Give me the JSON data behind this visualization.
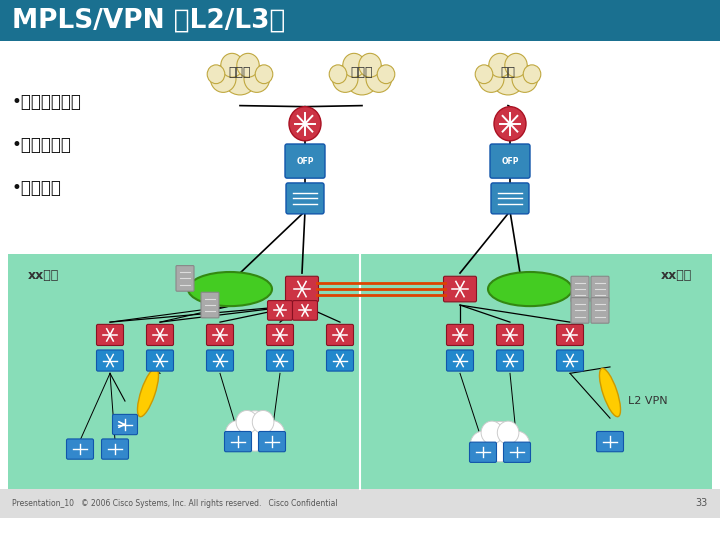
{
  "title": "MPLS/VPN （L2/L3）",
  "title_color": "#ffffff",
  "header_bg": "#1a7090",
  "body_bg": "#ffffff",
  "green_bg": "#88ddb8",
  "bullet_points": [
    "•学生宿舍连接",
    "•一卡通备份",
    "•数据中心"
  ],
  "cloud_labels": [
    "教科网",
    "校校通",
    "电信"
  ],
  "left_label": "xx校区",
  "right_label": "xx校区",
  "l2vpn_label": "L2 VPN",
  "footer_text": "Presentation_10   © 2006 Cisco Systems, Inc. All rights reserved.   Cisco Confidential",
  "page_num": "33",
  "router_color": "#cc3344",
  "ofp_color": "#3388bb",
  "switch_color": "#3388bb",
  "campus_router_color": "#cc3344",
  "blue_switch_color": "#2288cc",
  "cloud_color": "#f0e8c0",
  "cloud_ec": "#c0a840",
  "oval_color": "#44cc22",
  "oval_ec": "#338811",
  "red_line_color": "#dd4400",
  "orange_line_color": "#dd8800"
}
